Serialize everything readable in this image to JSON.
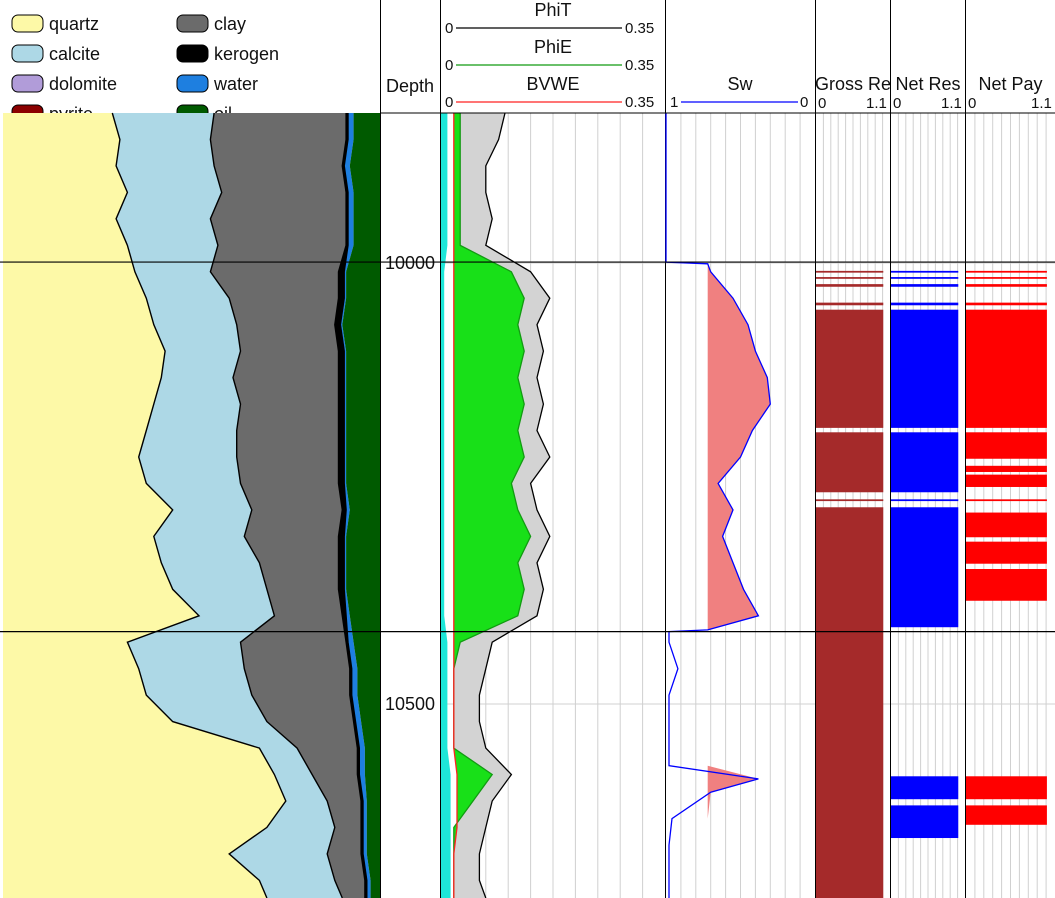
{
  "colors": {
    "quartz": "#fdf9a7",
    "calcite": "#add8e6",
    "dolomite": "#b19cd9",
    "pyrite": "#8b0000",
    "clay": "#6b6b6b",
    "kerogen": "#000000",
    "water": "#1e7fe0",
    "oil": "#005a00",
    "phit_fill": "#d3d3d3",
    "hydrocarbon_fill": "#18e018",
    "clay_bound_fill": "#1ee6d8",
    "phit_line": "#000000",
    "phie_line": "#129b12",
    "bvwe_line": "#ff2020",
    "sw_line": "#0000ff",
    "sw_fill": "#f08080",
    "gross_reservoir": "#a52a2a",
    "net_reservoir": "#0000ff",
    "net_pay": "#ff0000"
  },
  "chart_data": {
    "type": "area",
    "depth_label": "Depth",
    "depth_range": [
      9830,
      10720
    ],
    "depth_ticks": [
      10000,
      10500
    ],
    "zone_boundaries": [
      9999,
      10418
    ],
    "legend": [
      {
        "key": "quartz",
        "label": "quartz"
      },
      {
        "key": "calcite",
        "label": "calcite"
      },
      {
        "key": "dolomite",
        "label": "dolomite"
      },
      {
        "key": "pyrite",
        "label": "pyrite"
      },
      {
        "key": "clay",
        "label": "clay"
      },
      {
        "key": "kerogen",
        "label": "kerogen"
      },
      {
        "key": "water",
        "label": "water"
      },
      {
        "key": "oil",
        "label": "oil"
      }
    ],
    "lithology": {
      "range": [
        0,
        1
      ],
      "depths": [
        9830,
        9860,
        9890,
        9920,
        9950,
        9980,
        10010,
        10040,
        10070,
        10100,
        10130,
        10160,
        10190,
        10220,
        10250,
        10280,
        10310,
        10340,
        10370,
        10400,
        10430,
        10460,
        10490,
        10520,
        10550,
        10580,
        10610,
        10640,
        10670,
        10700,
        10720
      ],
      "cumulative": {
        "quartz": [
          0.29,
          0.31,
          0.3,
          0.33,
          0.3,
          0.33,
          0.35,
          0.38,
          0.4,
          0.43,
          0.42,
          0.4,
          0.38,
          0.36,
          0.38,
          0.45,
          0.4,
          0.42,
          0.45,
          0.52,
          0.33,
          0.36,
          0.38,
          0.45,
          0.68,
          0.72,
          0.75,
          0.7,
          0.6,
          0.68,
          0.7
        ],
        "calcite": [
          0.56,
          0.55,
          0.56,
          0.58,
          0.55,
          0.57,
          0.55,
          0.6,
          0.62,
          0.63,
          0.61,
          0.63,
          0.62,
          0.62,
          0.63,
          0.66,
          0.64,
          0.68,
          0.7,
          0.72,
          0.63,
          0.64,
          0.66,
          0.7,
          0.78,
          0.82,
          0.86,
          0.88,
          0.86,
          0.88,
          0.9
        ],
        "dolomite": [
          0.56,
          0.55,
          0.56,
          0.58,
          0.55,
          0.57,
          0.55,
          0.6,
          0.62,
          0.63,
          0.61,
          0.63,
          0.62,
          0.62,
          0.63,
          0.66,
          0.64,
          0.68,
          0.7,
          0.72,
          0.63,
          0.64,
          0.66,
          0.7,
          0.78,
          0.82,
          0.86,
          0.88,
          0.86,
          0.88,
          0.9
        ],
        "pyrite": [
          0.56,
          0.55,
          0.56,
          0.58,
          0.55,
          0.57,
          0.55,
          0.6,
          0.62,
          0.63,
          0.61,
          0.63,
          0.62,
          0.62,
          0.63,
          0.66,
          0.64,
          0.68,
          0.7,
          0.72,
          0.63,
          0.64,
          0.66,
          0.7,
          0.78,
          0.82,
          0.86,
          0.88,
          0.86,
          0.88,
          0.9
        ],
        "clay": [
          0.91,
          0.91,
          0.9,
          0.91,
          0.91,
          0.91,
          0.89,
          0.89,
          0.88,
          0.89,
          0.89,
          0.89,
          0.89,
          0.89,
          0.89,
          0.9,
          0.89,
          0.89,
          0.89,
          0.9,
          0.91,
          0.92,
          0.92,
          0.93,
          0.94,
          0.94,
          0.95,
          0.95,
          0.95,
          0.96,
          0.96
        ],
        "kerogen": [
          0.915,
          0.915,
          0.905,
          0.915,
          0.915,
          0.915,
          0.905,
          0.905,
          0.895,
          0.905,
          0.905,
          0.905,
          0.905,
          0.905,
          0.905,
          0.91,
          0.905,
          0.905,
          0.905,
          0.91,
          0.915,
          0.925,
          0.925,
          0.935,
          0.945,
          0.945,
          0.955,
          0.955,
          0.955,
          0.965,
          0.965
        ],
        "water": [
          0.93,
          0.93,
          0.92,
          0.93,
          0.93,
          0.93,
          0.91,
          0.91,
          0.9,
          0.91,
          0.91,
          0.91,
          0.91,
          0.91,
          0.91,
          0.92,
          0.91,
          0.91,
          0.91,
          0.92,
          0.93,
          0.94,
          0.94,
          0.95,
          0.96,
          0.96,
          0.965,
          0.965,
          0.965,
          0.975,
          0.975
        ],
        "oil": [
          1,
          1,
          1,
          1,
          1,
          1,
          1,
          1,
          1,
          1,
          1,
          1,
          1,
          1,
          1,
          1,
          1,
          1,
          1,
          1,
          1,
          1,
          1,
          1,
          1,
          1,
          1,
          1,
          1,
          1,
          1
        ]
      }
    },
    "porosity_track": {
      "range": [
        0,
        0.35
      ],
      "headers": [
        {
          "name": "PhiT",
          "min": "0",
          "max": "0.35"
        },
        {
          "name": "PhiE",
          "min": "0",
          "max": "0.35"
        },
        {
          "name": "BVWE",
          "min": "0",
          "max": "0.35"
        }
      ],
      "depths": [
        9830,
        9860,
        9890,
        9920,
        9950,
        9980,
        10010,
        10040,
        10070,
        10100,
        10130,
        10160,
        10190,
        10220,
        10250,
        10280,
        10310,
        10340,
        10370,
        10400,
        10430,
        10460,
        10490,
        10520,
        10550,
        10580,
        10610,
        10640,
        10670,
        10700,
        10720
      ],
      "clay_bound": [
        0.01,
        0.01,
        0.01,
        0.01,
        0.01,
        0.01,
        0.005,
        0.005,
        0.005,
        0.005,
        0.005,
        0.005,
        0.005,
        0.005,
        0.005,
        0.005,
        0.005,
        0.005,
        0.005,
        0.005,
        0.01,
        0.01,
        0.01,
        0.01,
        0.01,
        0.015,
        0.015,
        0.015,
        0.015,
        0.015,
        0.015
      ],
      "phit": [
        0.1,
        0.09,
        0.07,
        0.07,
        0.08,
        0.07,
        0.14,
        0.17,
        0.15,
        0.16,
        0.15,
        0.16,
        0.15,
        0.17,
        0.14,
        0.15,
        0.17,
        0.15,
        0.16,
        0.15,
        0.08,
        0.07,
        0.06,
        0.06,
        0.07,
        0.11,
        0.08,
        0.07,
        0.06,
        0.06,
        0.07
      ],
      "phie": [
        0.03,
        0.03,
        0.03,
        0.03,
        0.03,
        0.03,
        0.11,
        0.13,
        0.12,
        0.13,
        0.12,
        0.13,
        0.12,
        0.13,
        0.11,
        0.12,
        0.14,
        0.12,
        0.13,
        0.12,
        0.03,
        0.02,
        0.02,
        0.02,
        0.02,
        0.08,
        0.05,
        0.02,
        0.02,
        0.02,
        0.02
      ],
      "bvwe": [
        0.02,
        0.02,
        0.02,
        0.02,
        0.02,
        0.02,
        0.02,
        0.02,
        0.02,
        0.02,
        0.02,
        0.02,
        0.02,
        0.02,
        0.02,
        0.02,
        0.02,
        0.02,
        0.02,
        0.02,
        0.02,
        0.02,
        0.02,
        0.02,
        0.02,
        0.025,
        0.025,
        0.025,
        0.02,
        0.02,
        0.02
      ]
    },
    "sw_track": {
      "name": "Sw",
      "min": "1",
      "max": "0",
      "depths": [
        9830,
        9999,
        10001,
        10010,
        10040,
        10070,
        10100,
        10130,
        10160,
        10190,
        10220,
        10250,
        10280,
        10310,
        10340,
        10370,
        10400,
        10416,
        10418,
        10430,
        10460,
        10490,
        10520,
        10550,
        10570,
        10585,
        10600,
        10630,
        10660,
        10690,
        10720
      ],
      "values": [
        1,
        1,
        0.72,
        0.7,
        0.55,
        0.45,
        0.4,
        0.32,
        0.3,
        0.42,
        0.5,
        0.65,
        0.55,
        0.62,
        0.55,
        0.48,
        0.38,
        0.72,
        0.98,
        0.98,
        0.92,
        0.98,
        0.98,
        0.98,
        0.98,
        0.38,
        0.7,
        0.96,
        0.98,
        0.98,
        0.98
      ],
      "shade_to": 0.72
    },
    "flag_tracks": [
      {
        "name": "Gross Res",
        "label": "Gross Re",
        "min": "0",
        "max": "1.1",
        "color_key": "gross_reservoir",
        "intervals": [
          [
            10009,
            10011
          ],
          [
            10016,
            10018
          ],
          [
            10024,
            10027
          ],
          [
            10045,
            10048
          ],
          [
            10053,
            10187
          ],
          [
            10192,
            10260
          ],
          [
            10268,
            10270
          ],
          [
            10277,
            10720
          ]
        ]
      },
      {
        "name": "Net Reservoir",
        "label": "Net Res",
        "min": "0",
        "max": "1.1",
        "color_key": "net_reservoir",
        "intervals": [
          [
            10009,
            10011
          ],
          [
            10016,
            10018
          ],
          [
            10024,
            10027
          ],
          [
            10045,
            10048
          ],
          [
            10053,
            10187
          ],
          [
            10192,
            10260
          ],
          [
            10268,
            10270
          ],
          [
            10277,
            10413
          ],
          [
            10582,
            10608
          ],
          [
            10615,
            10652
          ]
        ]
      },
      {
        "name": "Net Pay",
        "label": "Net Pay",
        "min": "0",
        "max": "1.1",
        "color_key": "net_pay",
        "intervals": [
          [
            10009,
            10011
          ],
          [
            10016,
            10018
          ],
          [
            10024,
            10027
          ],
          [
            10045,
            10048
          ],
          [
            10053,
            10187
          ],
          [
            10192,
            10222
          ],
          [
            10230,
            10237
          ],
          [
            10240,
            10254
          ],
          [
            10268,
            10270
          ],
          [
            10283,
            10311
          ],
          [
            10316,
            10341
          ],
          [
            10347,
            10383
          ],
          [
            10582,
            10608
          ],
          [
            10615,
            10637
          ]
        ]
      }
    ]
  }
}
